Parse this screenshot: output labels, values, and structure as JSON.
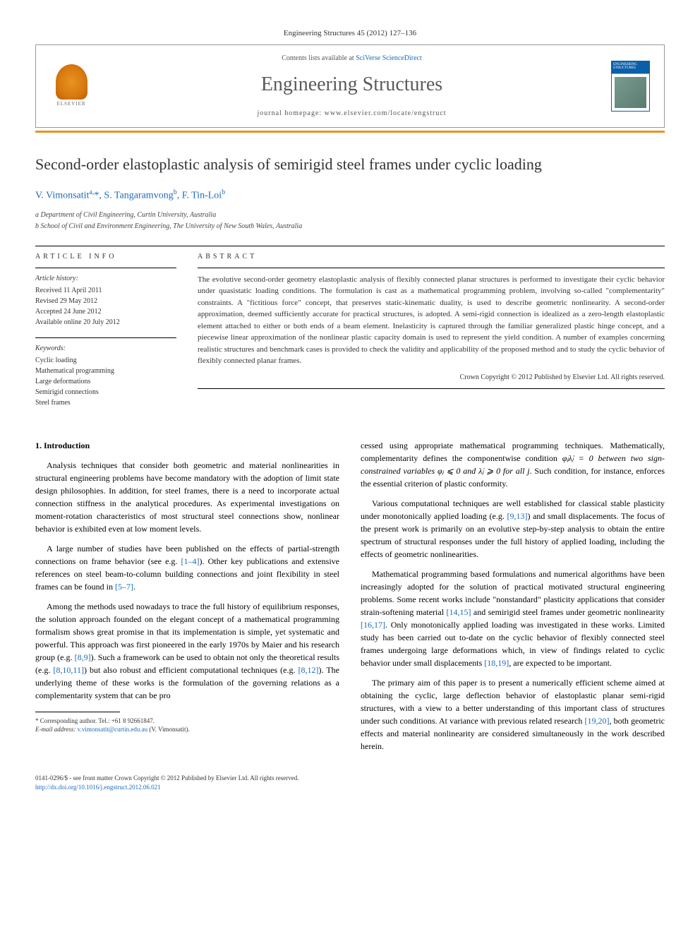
{
  "header": {
    "citation": "Engineering Structures 45 (2012) 127–136",
    "contents_prefix": "Contents lists available at ",
    "contents_link": "SciVerse ScienceDirect",
    "journal_title": "Engineering Structures",
    "homepage_prefix": "journal homepage: ",
    "homepage_url": "www.elsevier.com/locate/engstruct",
    "publisher": "ELSEVIER",
    "cover_label": "ENGINEERING STRUCTURES"
  },
  "article": {
    "title": "Second-order elastoplastic analysis of semirigid steel frames under cyclic loading",
    "authors_html": "V. Vimonsatit",
    "author1": "V. Vimonsatit",
    "author1_sup": "a,",
    "author1_star": "*",
    "author2": ", S. Tangaramvong",
    "author2_sup": "b",
    "author3": ", F. Tin-Loi",
    "author3_sup": "b",
    "affiliations": {
      "a": "a Department of Civil Engineering, Curtin University, Australia",
      "b": "b School of Civil and Environment Engineering, The University of New South Wales, Australia"
    }
  },
  "info": {
    "label": "ARTICLE INFO",
    "history_heading": "Article history:",
    "received": "Received 11 April 2011",
    "revised": "Revised 29 May 2012",
    "accepted": "Accepted 24 June 2012",
    "online": "Available online 20 July 2012",
    "keywords_heading": "Keywords:",
    "kw1": "Cyclic loading",
    "kw2": "Mathematical programming",
    "kw3": "Large deformations",
    "kw4": "Semirigid connections",
    "kw5": "Steel frames"
  },
  "abstract": {
    "label": "ABSTRACT",
    "text": "The evolutive second-order geometry elastoplastic analysis of flexibly connected planar structures is performed to investigate their cyclic behavior under quasistatic loading conditions. The formulation is cast as a mathematical programming problem, involving so-called \"complementarity\" constraints. A \"fictitious force\" concept, that preserves static-kinematic duality, is used to describe geometric nonlinearity. A second-order approximation, deemed sufficiently accurate for practical structures, is adopted. A semi-rigid connection is idealized as a zero-length elastoplastic element attached to either or both ends of a beam element. Inelasticity is captured through the familiar generalized plastic hinge concept, and a piecewise linear approximation of the nonlinear plastic capacity domain is used to represent the yield condition. A number of examples concerning realistic structures and benchmark cases is provided to check the validity and applicability of the proposed method and to study the cyclic behavior of flexibly connected planar frames.",
    "copyright": "Crown Copyright © 2012 Published by Elsevier Ltd. All rights reserved."
  },
  "body": {
    "section1_heading": "1. Introduction",
    "p1": "Analysis techniques that consider both geometric and material nonlinearities in structural engineering problems have become mandatory with the adoption of limit state design philosophies. In addition, for steel frames, there is a need to incorporate actual connection stiffness in the analytical procedures. As experimental investigations on moment-rotation characteristics of most structural steel connections show, nonlinear behavior is exhibited even at low moment levels.",
    "p2_a": "A large number of studies have been published on the effects of partial-strength connections on frame behavior (see e.g. ",
    "p2_ref1": "[1–4]",
    "p2_b": "). Other key publications and extensive references on steel beam-to-column building connections and joint flexibility in steel frames can be found in ",
    "p2_ref2": "[5–7]",
    "p2_c": ".",
    "p3_a": "Among the methods used nowadays to trace the full history of equilibrium responses, the solution approach founded on the elegant concept of a mathematical programming formalism shows great promise in that its implementation is simple, yet systematic and powerful. This approach was first pioneered in the early 1970s by Maier and his research group (e.g. ",
    "p3_ref1": "[8,9]",
    "p3_b": "). Such a framework can be used to obtain not only the theoretical results (e.g. ",
    "p3_ref2": "[8,10,11]",
    "p3_c": ") but also robust and efficient computational techniques (e.g. ",
    "p3_ref3": "[8,12]",
    "p3_d": "). The underlying theme of these works is the formulation of the governing relations as a complementarity system that can be pro",
    "p4_a": "cessed using appropriate mathematical programming techniques. Mathematically, complementarity defines the componentwise condition ",
    "p4_math": "φⱼλ̇ⱼ = 0 between two sign-constrained variables φⱼ ⩽ 0 and λ̇ⱼ ⩾ 0 for all j",
    "p4_b": ". Such condition, for instance, enforces the essential criterion of plastic conformity.",
    "p5_a": "Various computational techniques are well established for classical stable plasticity under monotonically applied loading (e.g. ",
    "p5_ref1": "[9,13]",
    "p5_b": ") and small displacements. The focus of the present work is primarily on an evolutive step-by-step analysis to obtain the entire spectrum of structural responses under the full history of applied loading, including the effects of geometric nonlinearities.",
    "p6_a": "Mathematical programming based formulations and numerical algorithms have been increasingly adopted for the solution of practical motivated structural engineering problems. Some recent works include \"nonstandard\" plasticity applications that consider strain-softening material ",
    "p6_ref1": "[14,15]",
    "p6_b": " and semirigid steel frames under geometric nonlinearity ",
    "p6_ref2": "[16,17]",
    "p6_c": ". Only monotonically applied loading was investigated in these works. Limited study has been carried out to-date on the cyclic behavior of flexibly connected steel frames undergoing large deformations which, in view of findings related to cyclic behavior under small displacements ",
    "p6_ref3": "[18,19]",
    "p6_d": ", are expected to be important.",
    "p7_a": "The primary aim of this paper is to present a numerically efficient scheme aimed at obtaining the cyclic, large deflection behavior of elastoplastic planar semi-rigid structures, with a view to a better understanding of this important class of structures under such conditions. At variance with previous related research ",
    "p7_ref1": "[19,20]",
    "p7_b": ", both geometric effects and material nonlinearity are considered simultaneously in the work described herein."
  },
  "footnote": {
    "corresponding": "* Corresponding author. Tel.: +61 8 92661847.",
    "email_label": "E-mail address: ",
    "email": "v.vimonsatit@curtin.edu.au",
    "email_suffix": " (V. Vimonsatit)."
  },
  "footer": {
    "line1": "0141-0296/$ - see front matter Crown Copyright © 2012 Published by Elsevier Ltd. All rights reserved.",
    "doi": "http://dx.doi.org/10.1016/j.engstruct.2012.06.021"
  },
  "colors": {
    "link": "#1a6bb8",
    "orange": "#e8941f",
    "text": "#333333"
  }
}
